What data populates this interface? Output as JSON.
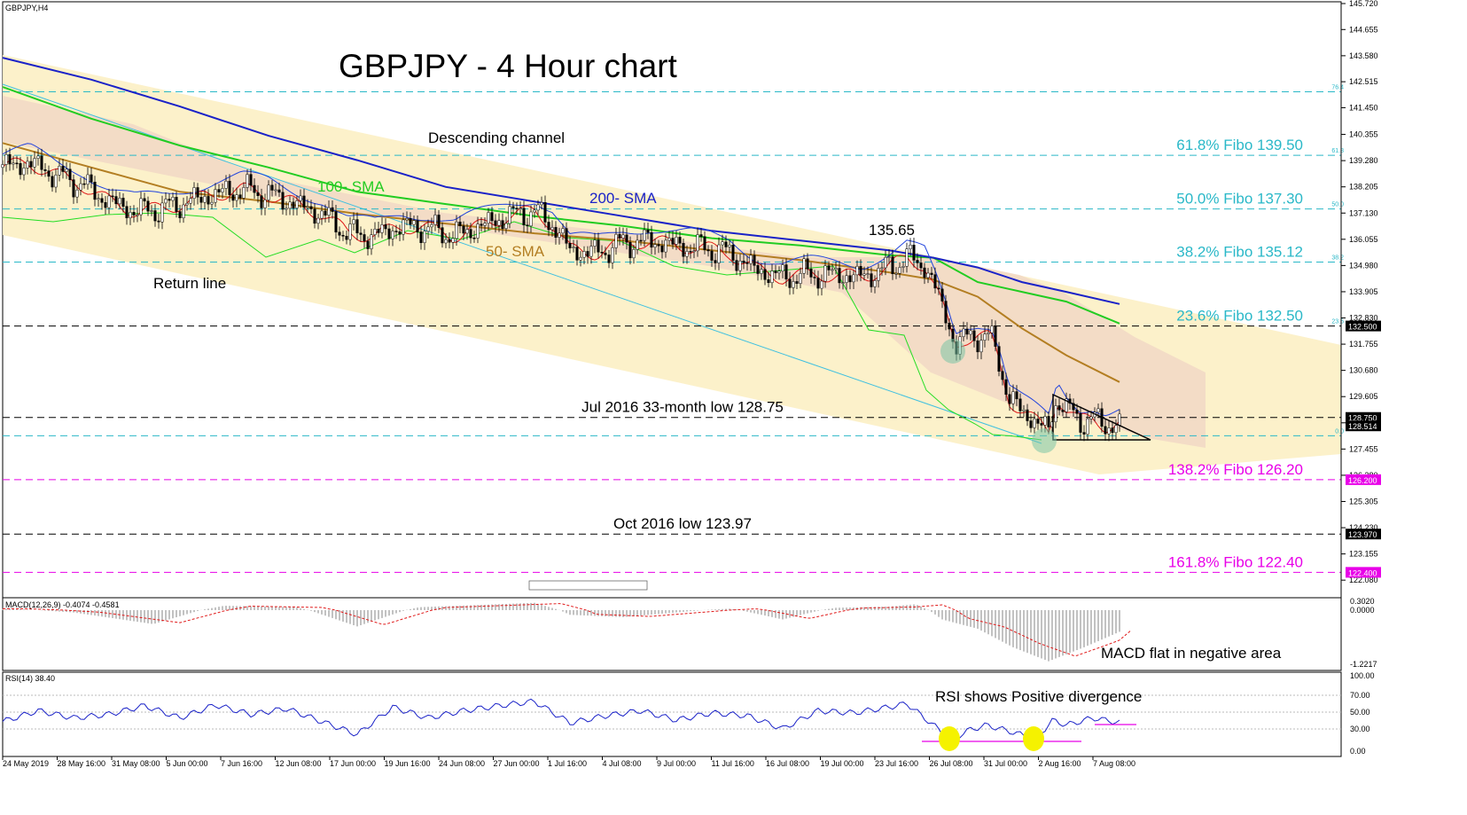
{
  "chart_data": {
    "type": "candlestick",
    "symbol_label": "GBPJPY,H4",
    "title": "GBPJPY - 4 Hour chart",
    "y_ticks": [
      "145.720",
      "144.655",
      "143.580",
      "142.515",
      "141.450",
      "140.355",
      "139.280",
      "138.205",
      "137.130",
      "136.055",
      "134.980",
      "133.905",
      "132.830",
      "131.755",
      "130.680",
      "129.605",
      "128.530",
      "127.455",
      "126.380",
      "125.305",
      "124.230",
      "123.155",
      "122.080"
    ],
    "y_range": [
      121.65,
      145.72
    ],
    "x_ticks": [
      "24 May 2019",
      "28 May 16:00",
      "31 May 08:00",
      "5 Jun 00:00",
      "7 Jun 16:00",
      "12 Jun 08:00",
      "17 Jun 00:00",
      "19 Jun 16:00",
      "24 Jun 08:00",
      "27 Jun 00:00",
      "1 Jul 16:00",
      "4 Jul 08:00",
      "9 Jul 00:00",
      "11 Jul 16:00",
      "16 Jul 08:00",
      "19 Jul 00:00",
      "23 Jul 16:00",
      "26 Jul 08:00",
      "31 Jul 00:00",
      "2 Aug 16:00",
      "7 Aug 08:00"
    ],
    "price_path": [
      [
        0,
        139.0
      ],
      [
        30,
        139.2
      ],
      [
        60,
        138.7
      ],
      [
        90,
        138.3
      ],
      [
        120,
        137.6
      ],
      [
        150,
        137.2
      ],
      [
        180,
        137.3
      ],
      [
        210,
        137.6
      ],
      [
        240,
        137.9
      ],
      [
        270,
        138.1
      ],
      [
        300,
        137.9
      ],
      [
        330,
        137.5
      ],
      [
        360,
        137.1
      ],
      [
        390,
        136.3
      ],
      [
        420,
        136.2
      ],
      [
        450,
        136.6
      ],
      [
        480,
        136.5
      ],
      [
        510,
        136.2
      ],
      [
        540,
        136.6
      ],
      [
        570,
        137.0
      ],
      [
        600,
        137.2
      ],
      [
        620,
        136.7
      ],
      [
        640,
        135.6
      ],
      [
        670,
        135.5
      ],
      [
        700,
        135.9
      ],
      [
        730,
        136.0
      ],
      [
        760,
        135.8
      ],
      [
        790,
        135.7
      ],
      [
        820,
        135.5
      ],
      [
        850,
        134.8
      ],
      [
        880,
        134.5
      ],
      [
        910,
        134.6
      ],
      [
        940,
        134.6
      ],
      [
        970,
        134.5
      ],
      [
        1000,
        134.9
      ],
      [
        1020,
        135.3
      ],
      [
        1040,
        135.0
      ],
      [
        1055,
        133.8
      ],
      [
        1065,
        132.8
      ],
      [
        1075,
        131.7
      ],
      [
        1085,
        132.0
      ],
      [
        1100,
        132.1
      ],
      [
        1115,
        132.0
      ],
      [
        1125,
        131.0
      ],
      [
        1135,
        129.5
      ],
      [
        1150,
        129.0
      ],
      [
        1165,
        128.6
      ],
      [
        1180,
        128.2
      ],
      [
        1190,
        129.6
      ],
      [
        1200,
        129.1
      ],
      [
        1215,
        128.6
      ],
      [
        1230,
        128.7
      ],
      [
        1245,
        128.4
      ],
      [
        1262,
        128.5
      ]
    ],
    "sma_100": [
      [
        0,
        142.3
      ],
      [
        100,
        141.0
      ],
      [
        200,
        139.9
      ],
      [
        300,
        139.0
      ],
      [
        400,
        138.0
      ],
      [
        500,
        137.5
      ],
      [
        600,
        137.0
      ],
      [
        700,
        136.6
      ],
      [
        800,
        136.1
      ],
      [
        900,
        135.8
      ],
      [
        1000,
        135.4
      ],
      [
        1050,
        135.3
      ],
      [
        1100,
        134.3
      ],
      [
        1150,
        133.9
      ],
      [
        1200,
        133.5
      ],
      [
        1260,
        132.6
      ]
    ],
    "sma_200": [
      [
        0,
        143.5
      ],
      [
        100,
        142.6
      ],
      [
        200,
        141.5
      ],
      [
        300,
        140.3
      ],
      [
        400,
        139.3
      ],
      [
        500,
        138.2
      ],
      [
        600,
        137.6
      ],
      [
        700,
        137.0
      ],
      [
        800,
        136.4
      ],
      [
        900,
        136.0
      ],
      [
        1000,
        135.6
      ],
      [
        1050,
        135.3
      ],
      [
        1100,
        134.9
      ],
      [
        1150,
        134.3
      ],
      [
        1200,
        133.9
      ],
      [
        1260,
        133.4
      ]
    ],
    "sma_50": [
      [
        0,
        140.0
      ],
      [
        100,
        139.0
      ],
      [
        200,
        138.0
      ],
      [
        300,
        137.6
      ],
      [
        400,
        137.1
      ],
      [
        500,
        136.7
      ],
      [
        600,
        136.3
      ],
      [
        700,
        136.0
      ],
      [
        800,
        135.6
      ],
      [
        900,
        135.2
      ],
      [
        1000,
        134.7
      ],
      [
        1050,
        134.4
      ],
      [
        1100,
        133.7
      ],
      [
        1150,
        132.4
      ],
      [
        1200,
        131.3
      ],
      [
        1260,
        130.2
      ]
    ],
    "levels": [
      {
        "price": 142.1,
        "label": "",
        "fibo_tag": "76.4",
        "price_tag": "",
        "color": "#2ab8c8"
      },
      {
        "price": 139.5,
        "label": "61.8% Fibo 139.50",
        "fibo_tag": "61.8",
        "price_tag": "",
        "color": "#2ab8c8"
      },
      {
        "price": 137.3,
        "label": "50.0% Fibo 137.30",
        "fibo_tag": "50.0",
        "price_tag": "",
        "color": "#2ab8c8"
      },
      {
        "price": 135.12,
        "label": "38.2% Fibo 135.12",
        "fibo_tag": "38.2",
        "price_tag": "",
        "color": "#2ab8c8"
      },
      {
        "price": 132.5,
        "label": "23.6% Fibo 132.50",
        "fibo_tag": "23.6",
        "price_tag": "132.500",
        "color": "#000000"
      },
      {
        "price": 128.75,
        "label": "Jul 2016 33-month low 128.75",
        "fibo_tag": "",
        "price_tag": "128.750",
        "color": "#000000"
      },
      {
        "price": 128.0,
        "label": "",
        "fibo_tag": "0.0",
        "price_tag": "",
        "color": "#2ab8c8"
      },
      {
        "price": 126.2,
        "label": "138.2% Fibo 126.20",
        "fibo_tag": "",
        "price_tag": "126.200",
        "color": "#e800e8"
      },
      {
        "price": 123.97,
        "label": "Oct 2016 low 123.97",
        "fibo_tag": "",
        "price_tag": "123.970",
        "color": "#000000"
      },
      {
        "price": 122.4,
        "label": "161.8% Fibo 122.40",
        "fibo_tag": "",
        "price_tag": "122.400",
        "color": "#e800e8"
      }
    ],
    "current_price_tag": "128.514",
    "annotations": {
      "descending_channel": "Descending channel",
      "sma_100": "100- SMA",
      "sma_200": "200- SMA",
      "sma_50": "50- SMA",
      "return_line": "Return line",
      "peak": "135.65"
    },
    "macd": {
      "label": "MACD(12,26,9) -0.4074 -0.4581",
      "ticks": [
        "0.3020",
        "0.0000",
        "-1.2217"
      ],
      "annotation": "MACD flat in negative area",
      "values": [
        [
          0,
          0.05
        ],
        [
          80,
          -0.05
        ],
        [
          170,
          -0.3
        ],
        [
          250,
          0.15
        ],
        [
          330,
          0.1
        ],
        [
          400,
          -0.35
        ],
        [
          470,
          0.1
        ],
        [
          540,
          0.18
        ],
        [
          600,
          0.25
        ],
        [
          640,
          -0.1
        ],
        [
          700,
          -0.15
        ],
        [
          760,
          -0.05
        ],
        [
          820,
          0.05
        ],
        [
          880,
          -0.2
        ],
        [
          940,
          0.08
        ],
        [
          1000,
          0.12
        ],
        [
          1030,
          0.2
        ],
        [
          1060,
          -0.2
        ],
        [
          1100,
          -0.4
        ],
        [
          1140,
          -0.8
        ],
        [
          1180,
          -1.1
        ],
        [
          1220,
          -0.8
        ],
        [
          1262,
          -0.45
        ]
      ]
    },
    "rsi": {
      "label": "RSI(14) 38.40",
      "ticks": [
        "100.00",
        "70.00",
        "50.00",
        "30.00",
        "0.00"
      ],
      "annotation": "RSI shows Positive divergence",
      "values": [
        [
          0,
          40
        ],
        [
          40,
          55
        ],
        [
          80,
          45
        ],
        [
          120,
          50
        ],
        [
          160,
          62
        ],
        [
          200,
          45
        ],
        [
          240,
          63
        ],
        [
          280,
          50
        ],
        [
          320,
          58
        ],
        [
          360,
          40
        ],
        [
          400,
          22
        ],
        [
          440,
          60
        ],
        [
          480,
          45
        ],
        [
          520,
          55
        ],
        [
          560,
          62
        ],
        [
          600,
          68
        ],
        [
          640,
          38
        ],
        [
          680,
          48
        ],
        [
          720,
          55
        ],
        [
          760,
          42
        ],
        [
          800,
          52
        ],
        [
          840,
          48
        ],
        [
          880,
          30
        ],
        [
          920,
          55
        ],
        [
          960,
          52
        ],
        [
          1000,
          60
        ],
        [
          1020,
          65
        ],
        [
          1040,
          45
        ],
        [
          1070,
          15
        ],
        [
          1090,
          28
        ],
        [
          1110,
          35
        ],
        [
          1140,
          25
        ],
        [
          1165,
          16
        ],
        [
          1185,
          42
        ],
        [
          1200,
          35
        ],
        [
          1230,
          45
        ],
        [
          1262,
          38
        ]
      ]
    }
  }
}
